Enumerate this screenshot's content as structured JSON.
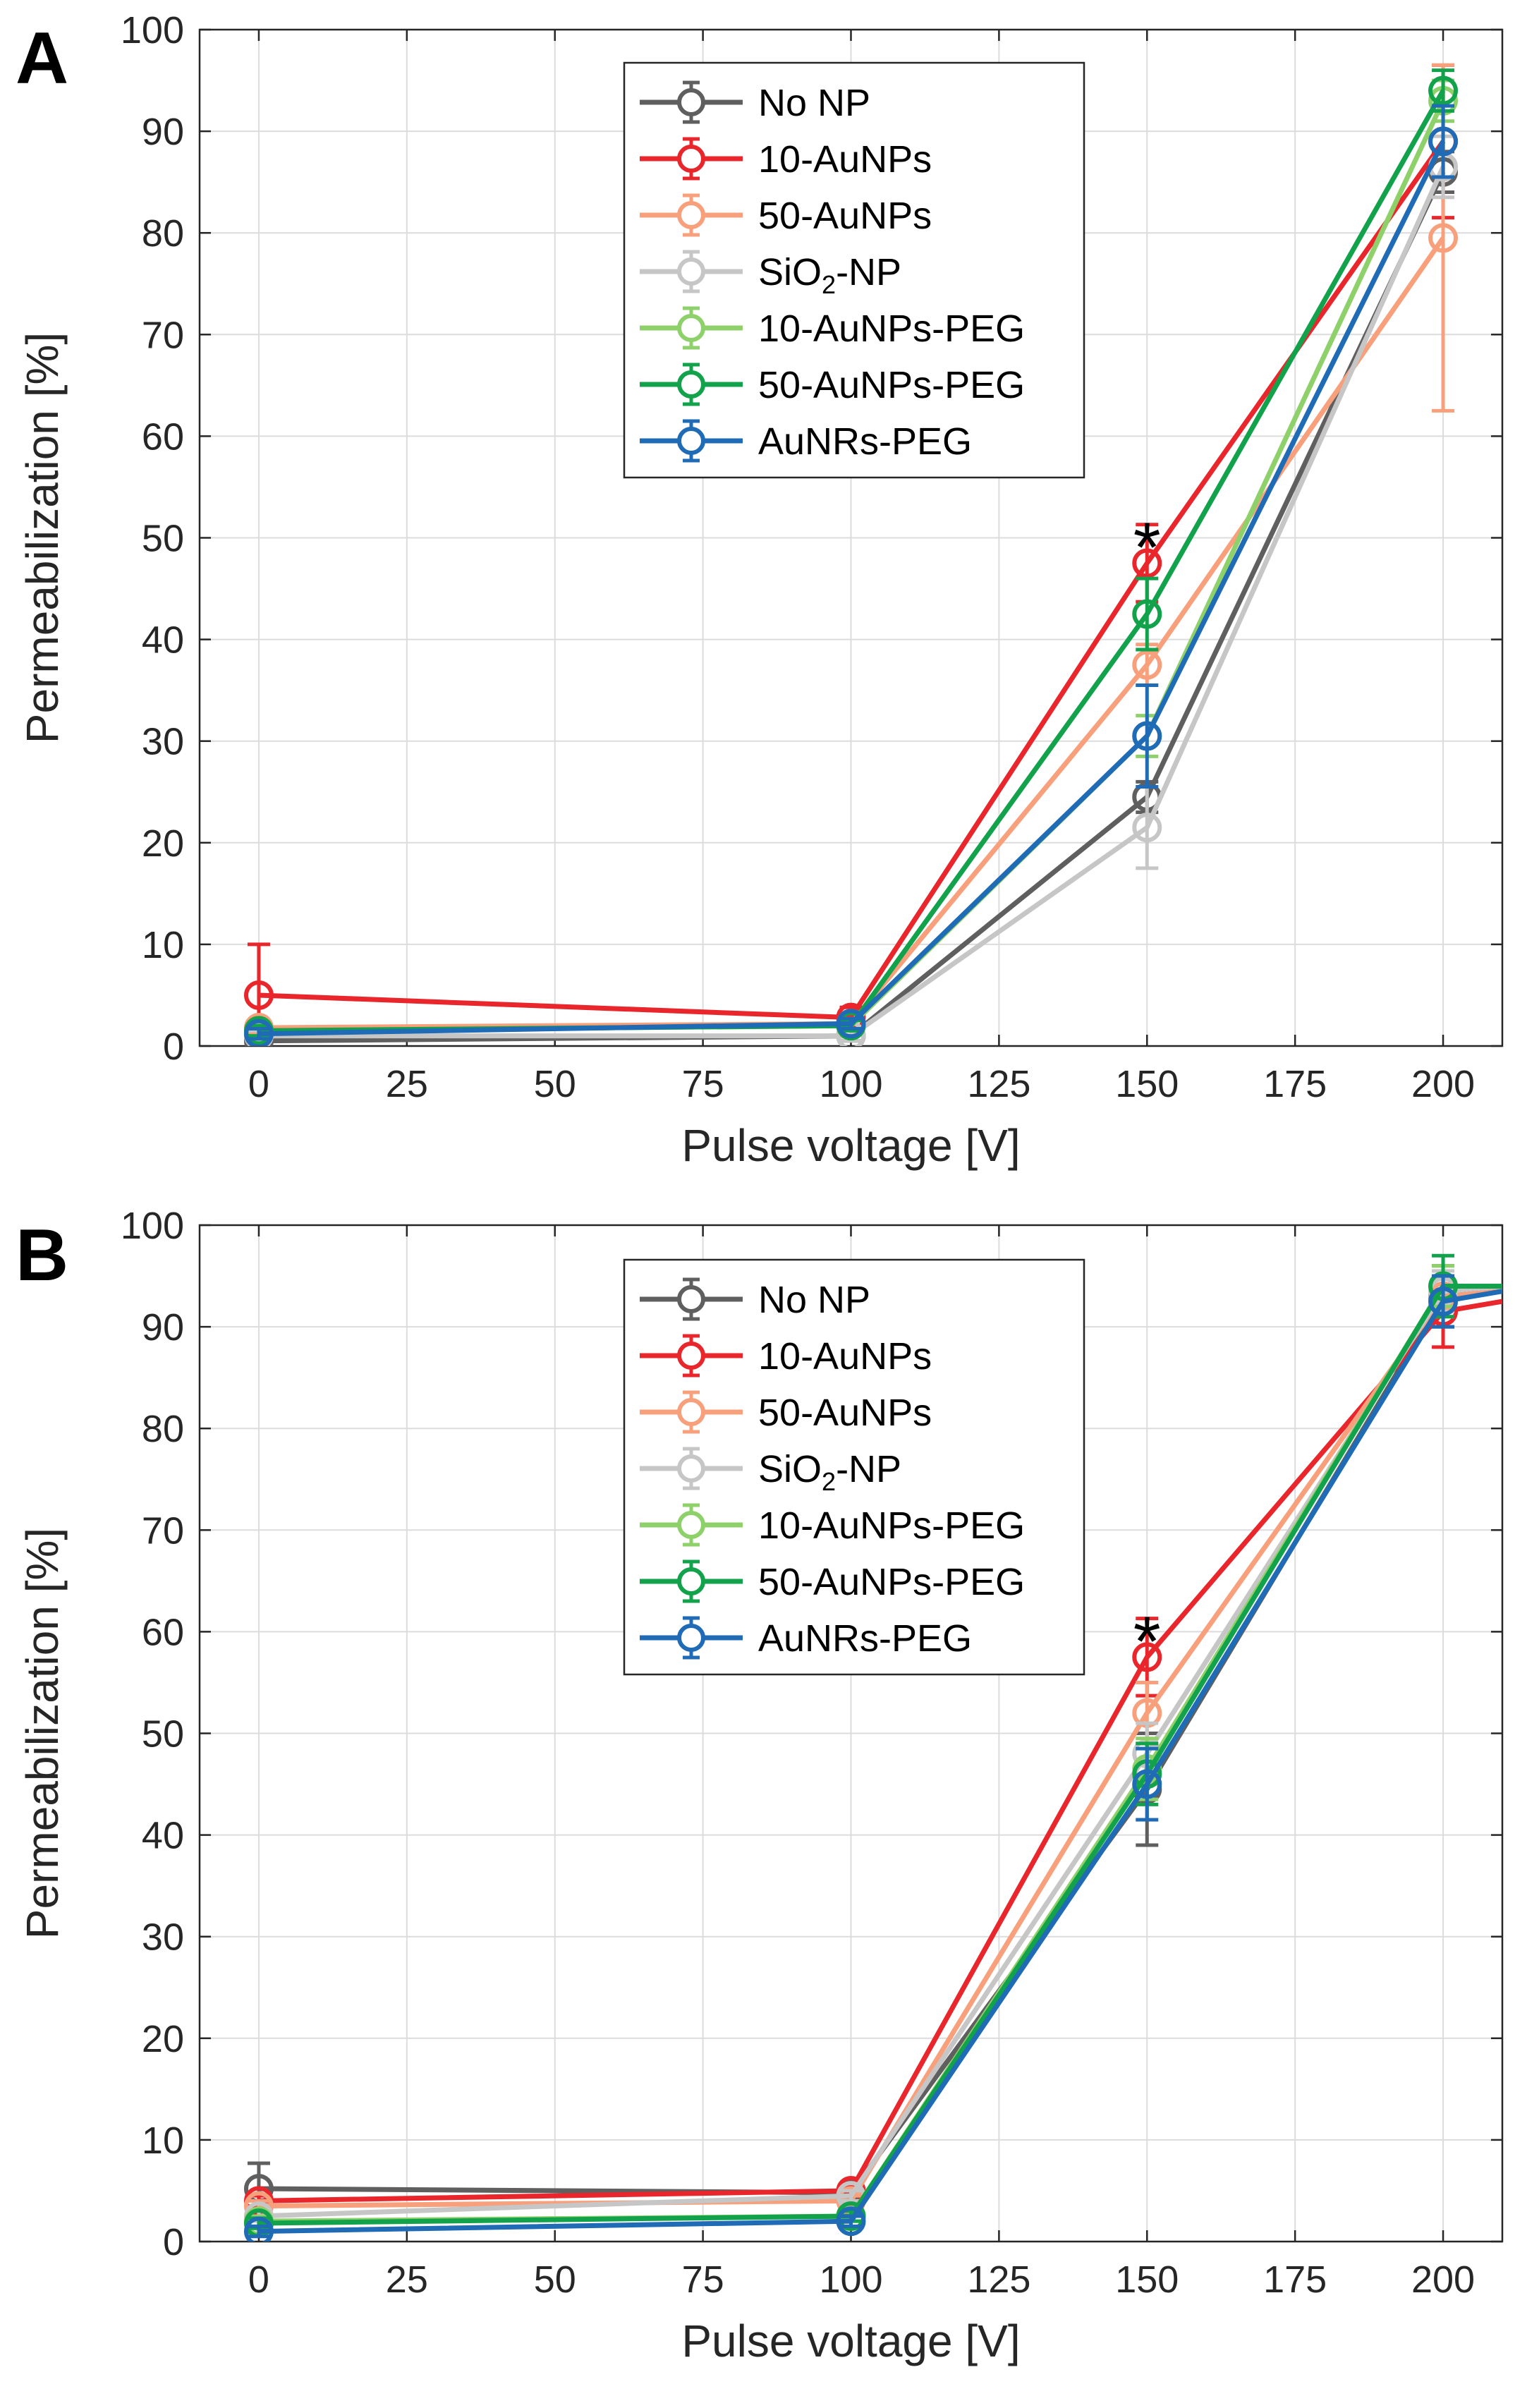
{
  "chart_data": [
    {
      "type": "line",
      "panel_label": "A",
      "xlabel": "Pulse voltage [V]",
      "ylabel": "Permeabilization [%]",
      "xlim": [
        -10,
        210
      ],
      "ylim": [
        0,
        100
      ],
      "xticks": [
        0,
        25,
        50,
        75,
        100,
        125,
        150,
        175,
        200
      ],
      "yticks": [
        0,
        10,
        20,
        30,
        40,
        50,
        60,
        70,
        80,
        90,
        100
      ],
      "grid": true,
      "legend_position": "top-center",
      "x": [
        0,
        100,
        150,
        200
      ],
      "series": [
        {
          "name": "No NP",
          "name_sub": "",
          "name_suffix": "",
          "color": "#5f5f5f",
          "values": [
            0.5,
            1,
            24.5,
            86
          ],
          "errors": [
            0.5,
            0.5,
            1.5,
            2
          ]
        },
        {
          "name": "10-AuNPs",
          "name_sub": "",
          "name_suffix": "",
          "color": "#e8262b",
          "values": [
            5,
            2.8,
            47.5,
            89
          ],
          "errors": [
            5,
            1,
            3.8,
            7.5
          ]
        },
        {
          "name": "50-AuNPs",
          "name_sub": "",
          "name_suffix": "",
          "color": "#f7a07b",
          "values": [
            1.8,
            2.2,
            37.5,
            79.5
          ],
          "errors": [
            0.5,
            0.5,
            2,
            17
          ]
        },
        {
          "name": "SiO",
          "name_sub": "2",
          "name_suffix": "-NP",
          "color": "#c6c6c6",
          "values": [
            1,
            1,
            21.5,
            86.5
          ],
          "errors": [
            0.5,
            0.5,
            4,
            3
          ]
        },
        {
          "name": "10-AuNPs-PEG",
          "name_sub": "",
          "name_suffix": "",
          "color": "#8ed16a",
          "values": [
            1.5,
            2,
            30.5,
            93
          ],
          "errors": [
            0.5,
            0.5,
            2,
            2
          ]
        },
        {
          "name": "50-AuNPs-PEG",
          "name_sub": "",
          "name_suffix": "",
          "color": "#12a24b",
          "values": [
            1.5,
            2,
            42.5,
            94
          ],
          "errors": [
            0.5,
            0.5,
            3.5,
            2
          ]
        },
        {
          "name": "AuNRs-PEG",
          "name_sub": "",
          "name_suffix": "",
          "color": "#1f6bb5",
          "values": [
            1.2,
            2.2,
            30.5,
            89
          ],
          "errors": [
            0.5,
            0.5,
            5,
            3.5
          ]
        }
      ],
      "annotations": [
        {
          "text": "*",
          "x": 150,
          "y": 50
        }
      ]
    },
    {
      "type": "line",
      "panel_label": "B",
      "xlabel": "Pulse voltage [V]",
      "ylabel": "Permeabilization [%]",
      "xlim": [
        -10,
        210
      ],
      "ylim": [
        0,
        100
      ],
      "xticks": [
        0,
        25,
        50,
        75,
        100,
        125,
        150,
        175,
        200
      ],
      "yticks": [
        0,
        10,
        20,
        30,
        40,
        50,
        60,
        70,
        80,
        90,
        100
      ],
      "grid": true,
      "legend_position": "top-center",
      "x": [
        0,
        100,
        150,
        200,
        210
      ],
      "series": [
        {
          "name": "No NP",
          "name_sub": "",
          "name_suffix": "",
          "color": "#5f5f5f",
          "values": [
            5.2,
            4.8,
            44.5,
            93,
            93.5
          ],
          "errors": [
            2.5,
            0.5,
            5.5,
            3,
            0
          ]
        },
        {
          "name": "10-AuNPs",
          "name_sub": "",
          "name_suffix": "",
          "color": "#e8262b",
          "values": [
            4,
            5,
            57.5,
            91.5,
            92.5
          ],
          "errors": [
            0.5,
            0.5,
            3.8,
            3.5,
            0
          ]
        },
        {
          "name": "50-AuNPs",
          "name_sub": "",
          "name_suffix": "",
          "color": "#f7a07b",
          "values": [
            3.5,
            4,
            52,
            93,
            93.5
          ],
          "errors": [
            0.5,
            0.5,
            3,
            2,
            0
          ]
        },
        {
          "name": "SiO",
          "name_sub": "2",
          "name_suffix": "-NP",
          "color": "#c6c6c6",
          "values": [
            2.5,
            4.5,
            48,
            93.5,
            94
          ],
          "errors": [
            0.5,
            0.5,
            3,
            2,
            0
          ]
        },
        {
          "name": "10-AuNPs-PEG",
          "name_sub": "",
          "name_suffix": "",
          "color": "#8ed16a",
          "values": [
            2,
            2.5,
            46.5,
            94,
            94
          ],
          "errors": [
            0.5,
            0.5,
            3,
            2,
            0
          ]
        },
        {
          "name": "50-AuNPs-PEG",
          "name_sub": "",
          "name_suffix": "",
          "color": "#12a24b",
          "values": [
            1.8,
            2.5,
            46,
            94,
            94
          ],
          "errors": [
            0.5,
            0.5,
            3,
            3,
            0
          ]
        },
        {
          "name": "AuNRs-PEG",
          "name_sub": "",
          "name_suffix": "",
          "color": "#1f6bb5",
          "values": [
            1,
            2,
            45,
            92.5,
            93.5
          ],
          "errors": [
            0.5,
            0.5,
            3.5,
            2.5,
            0
          ]
        }
      ],
      "annotations": [
        {
          "text": "*",
          "x": 150,
          "y": 60
        }
      ]
    }
  ]
}
